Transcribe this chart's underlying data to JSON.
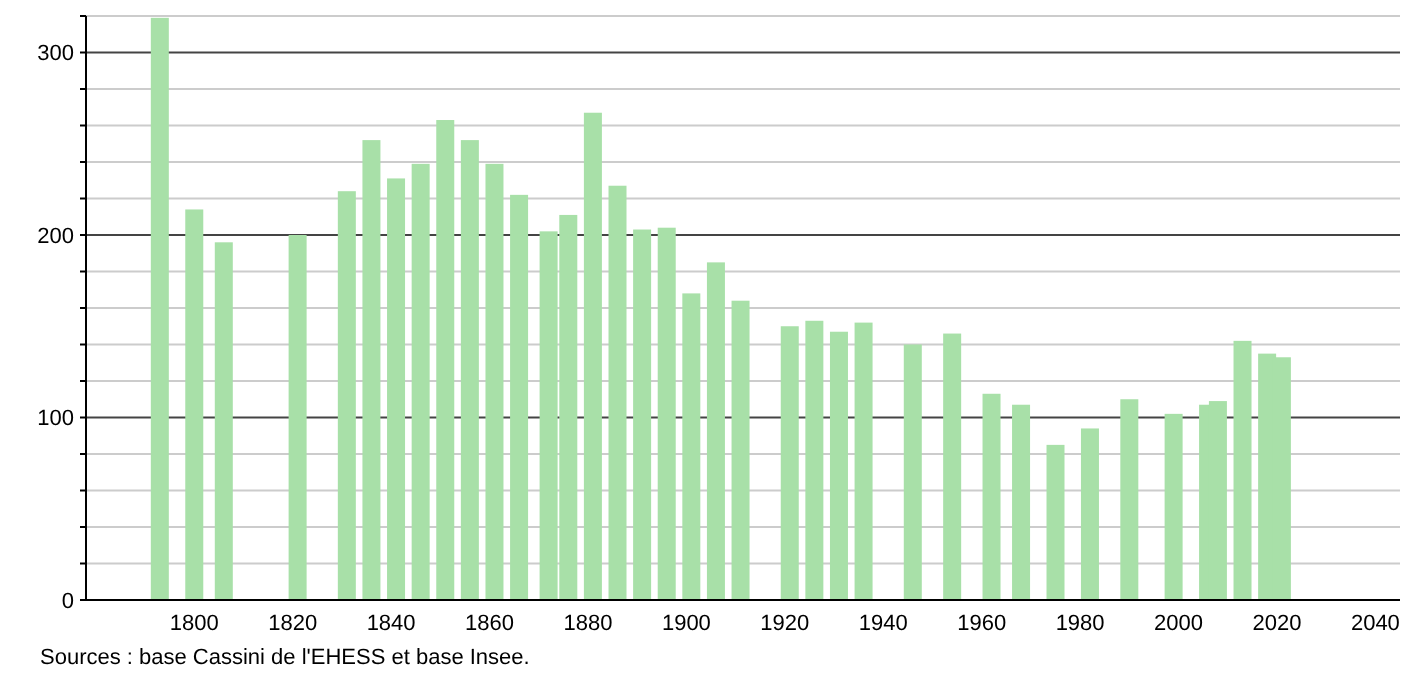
{
  "chart_data": {
    "type": "bar",
    "x": [
      1793,
      1800,
      1806,
      1821,
      1831,
      1836,
      1841,
      1846,
      1851,
      1856,
      1861,
      1866,
      1872,
      1876,
      1881,
      1886,
      1891,
      1896,
      1901,
      1906,
      1911,
      1921,
      1926,
      1931,
      1936,
      1946,
      1954,
      1962,
      1968,
      1975,
      1982,
      1990,
      1999,
      2006,
      2008,
      2013,
      2018,
      2021
    ],
    "values": [
      319,
      214,
      196,
      200,
      224,
      252,
      231,
      239,
      263,
      252,
      239,
      222,
      202,
      211,
      267,
      227,
      203,
      204,
      168,
      185,
      164,
      150,
      153,
      147,
      152,
      140,
      146,
      113,
      107,
      85,
      94,
      110,
      102,
      107,
      109,
      142,
      135,
      133
    ],
    "color": "#a8e0a8",
    "xlim": [
      1778,
      2045
    ],
    "xticks": [
      1800,
      1820,
      1840,
      1860,
      1880,
      1900,
      1920,
      1940,
      1960,
      1980,
      2000,
      2020,
      2040
    ],
    "ylim": [
      0,
      320
    ],
    "yticks": [
      0,
      {
        "value": 20,
        "label": null
      },
      {
        "value": 40,
        "label": null
      },
      {
        "value": 60,
        "label": null
      },
      {
        "value": 80,
        "label": null
      },
      100,
      {
        "value": 120,
        "label": null
      },
      {
        "value": 140,
        "label": null
      },
      {
        "value": 160,
        "label": null
      },
      {
        "value": 180,
        "label": null
      },
      200,
      {
        "value": 220,
        "label": null
      },
      {
        "value": 240,
        "label": null
      },
      {
        "value": 260,
        "label": null
      },
      {
        "value": 280,
        "label": null
      },
      300,
      {
        "value": 320,
        "label": null
      }
    ],
    "grid": "y",
    "annotations": [
      "Sources : base Cassini de l'EHESS et base Insee."
    ]
  }
}
